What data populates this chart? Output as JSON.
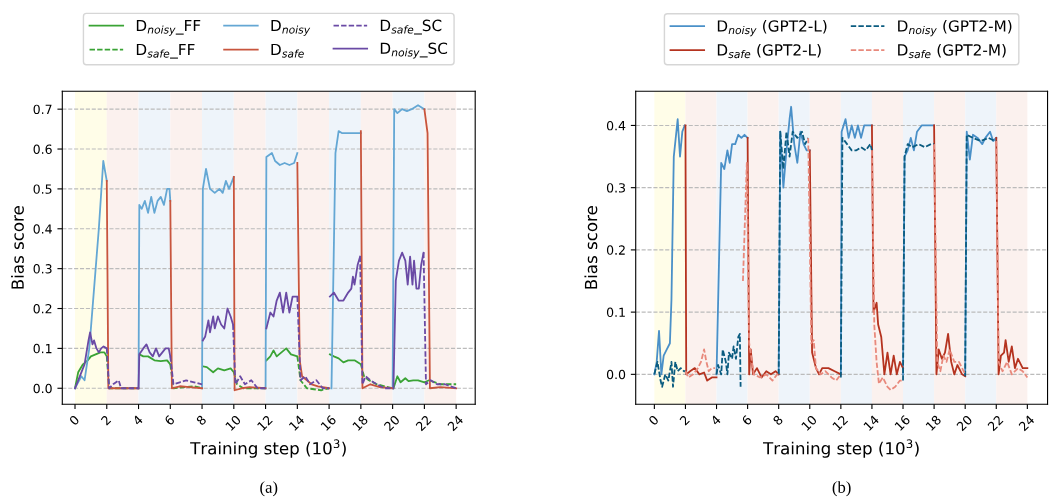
{
  "chart_data": [
    {
      "type": "line",
      "xlabel": "Training step (10$^{3}$)",
      "ylabel": "Bias score",
      "annotations": [
        "(a)"
      ],
      "xlim": [
        -0.8,
        25.2
      ],
      "xticks": [
        0,
        2,
        4,
        6,
        8,
        10,
        12,
        14,
        16,
        18,
        20,
        22,
        24
      ],
      "ylim": [
        -0.04,
        0.745
      ],
      "yticks": [
        {
          "value": 0,
          "label": "0.0"
        },
        0.1,
        0.2,
        0.3,
        0.4,
        0.5,
        0.6,
        0.7
      ],
      "grid": "y",
      "legend": "top",
      "bands": [
        {
          "axis": "x",
          "from": 0,
          "to": 2,
          "color": "#fffde8"
        },
        {
          "axis": "x",
          "from": 2,
          "to": 4,
          "color": "#fbf1ee"
        },
        {
          "axis": "x",
          "from": 4,
          "to": 6,
          "color": "#eef4fa"
        },
        {
          "axis": "x",
          "from": 6,
          "to": 8,
          "color": "#fbf1ee"
        },
        {
          "axis": "x",
          "from": 8,
          "to": 10,
          "color": "#eef4fa"
        },
        {
          "axis": "x",
          "from": 10,
          "to": 12,
          "color": "#fbf1ee"
        },
        {
          "axis": "x",
          "from": 12,
          "to": 14,
          "color": "#eef4fa"
        },
        {
          "axis": "x",
          "from": 14,
          "to": 16,
          "color": "#fbf1ee"
        },
        {
          "axis": "x",
          "from": 16,
          "to": 18,
          "color": "#eef4fa"
        },
        {
          "axis": "x",
          "from": 18,
          "to": 20,
          "color": "#fbf1ee"
        },
        {
          "axis": "x",
          "from": 20,
          "to": 22,
          "color": "#eef4fa"
        },
        {
          "axis": "x",
          "from": 22,
          "to": 24,
          "color": "#fbf1ee"
        }
      ],
      "series": [
        {
          "name": "D$_{noisy}$_FF",
          "color": "#3aa335",
          "line_style": "solid",
          "x": [
            0,
            0.2,
            0.5,
            0.8,
            1.0,
            1.3,
            1.6,
            1.85,
            2.0,
            3,
            4.05,
            4.3,
            4.6,
            5.0,
            5.4,
            5.8,
            6.0,
            7,
            8.05,
            8.3,
            8.7,
            9.0,
            9.4,
            9.8,
            10.0,
            11,
            12.05,
            12.3,
            12.5,
            12.7,
            13.0,
            13.3,
            13.6,
            14.0,
            15,
            16.05,
            16.3,
            16.6,
            16.9,
            17.2,
            17.6,
            18.0,
            19,
            20.05,
            20.3,
            20.5,
            20.8,
            21.0,
            21.3,
            21.6,
            22.0
          ],
          "values": [
            0,
            0.04,
            0.06,
            0.07,
            0.08,
            0.085,
            0.09,
            0.09,
            0.08,
            null,
            0.085,
            0.08,
            0.08,
            0.07,
            0.068,
            0.07,
            0.06,
            null,
            0.055,
            0.053,
            0.04,
            0.05,
            0.045,
            0.05,
            0.04,
            null,
            0.07,
            0.08,
            0.095,
            0.08,
            0.09,
            0.1,
            0.085,
            0.08,
            null,
            0.085,
            0.08,
            0.075,
            0.065,
            0.07,
            0.07,
            0.06,
            null,
            0.0,
            0.03,
            0.015,
            0.025,
            0.018,
            0.02,
            0.02,
            0.015
          ]
        },
        {
          "name": "D$_{safe}$_FF",
          "color": "#3aa335",
          "line_style": "dashed",
          "x": [
            2.0,
            2.15,
            3.0,
            4.0,
            5,
            6.0,
            6.2,
            7.5,
            8.0,
            9,
            10.0,
            10.2,
            10.6,
            11.5,
            12.0,
            13,
            14.0,
            14.2,
            14.6,
            15.5,
            16.0,
            17,
            18.0,
            18.2,
            18.5,
            19.0,
            19.5,
            20.0,
            21,
            22.0,
            22.3,
            23.0,
            24.0
          ],
          "values": [
            0.08,
            0.0,
            0.0,
            0.0,
            null,
            0.06,
            0.0,
            0.005,
            0.0,
            null,
            0.04,
            0.01,
            0.0,
            0.0,
            0.0,
            null,
            0.08,
            0.02,
            0.0,
            -0.005,
            0.0,
            null,
            0.06,
            0.03,
            0.02,
            0.01,
            0.005,
            0.0,
            null,
            0.015,
            0.02,
            0.01,
            0.01
          ]
        },
        {
          "name": "D$_{noisy}$",
          "color": "#64a7d4",
          "line_style": "solid",
          "x": [
            0,
            0.4,
            0.6,
            0.9,
            1.2,
            1.5,
            1.78,
            2.0,
            3,
            4.0,
            4.05,
            4.2,
            4.4,
            4.6,
            4.8,
            5.0,
            5.2,
            5.4,
            5.6,
            5.8,
            5.95,
            6.0,
            7,
            8.0,
            8.05,
            8.25,
            8.5,
            8.8,
            9.1,
            9.3,
            9.5,
            9.7,
            10.0,
            11,
            12.0,
            12.05,
            12.4,
            12.6,
            12.9,
            13.2,
            13.5,
            13.8,
            14.0,
            15,
            16.15,
            16.4,
            16.6,
            16.8,
            18.0,
            19,
            20.0,
            20.1,
            20.3,
            20.6,
            20.9,
            21.2,
            21.6,
            22.0
          ],
          "values": [
            0,
            0.03,
            0.02,
            0.1,
            0.25,
            0.4,
            0.57,
            0.52,
            null,
            0.0,
            0.46,
            0.45,
            0.47,
            0.44,
            0.48,
            0.44,
            0.47,
            0.48,
            0.46,
            0.5,
            0.5,
            0.47,
            null,
            0.0,
            0.5,
            0.55,
            0.5,
            0.49,
            0.5,
            0.49,
            0.52,
            0.5,
            0.53,
            null,
            0.0,
            0.58,
            0.59,
            0.57,
            0.56,
            0.565,
            0.56,
            0.565,
            0.59,
            null,
            0.0,
            0.59,
            0.645,
            0.64,
            0.64,
            null,
            0.0,
            0.7,
            0.69,
            0.7,
            0.695,
            0.7,
            0.71,
            0.7
          ]
        },
        {
          "name": "D$_{safe}$",
          "color": "#c8553d",
          "line_style": "solid",
          "x": [
            2.0,
            2.1,
            3.0,
            4.0,
            5,
            6.0,
            6.1,
            6.6,
            7.2,
            8.0,
            9,
            10.0,
            10.05,
            10.5,
            11.0,
            12.0,
            13,
            14.0,
            14.15,
            14.3,
            14.6,
            14.9,
            15.3,
            16.0,
            17,
            18.0,
            18.1,
            18.6,
            19.2,
            20.0,
            21,
            22.0,
            22.2,
            22.35,
            23.0,
            24.0
          ],
          "values": [
            0.52,
            0.0,
            0.0,
            0.0,
            null,
            0.47,
            0.0,
            0.005,
            0.003,
            0.0,
            null,
            0.53,
            -0.005,
            0.0,
            0.003,
            0.0,
            null,
            0.565,
            0.07,
            0.03,
            0.02,
            0.01,
            0.005,
            0.0,
            null,
            0.645,
            0.0,
            0.01,
            0.003,
            0.0,
            null,
            0.7,
            0.64,
            0.0,
            0.003,
            0.0
          ]
        },
        {
          "name": "D$_{safe}$_SC",
          "color": "#6a4aa5",
          "line_style": "dashed",
          "x": [
            2.0,
            2.15,
            2.4,
            2.75,
            2.9,
            3.5,
            4.0,
            5,
            6.0,
            6.2,
            6.6,
            7.0,
            7.5,
            8.0,
            9,
            9.95,
            10.1,
            10.4,
            10.7,
            11.1,
            11.5,
            12.0,
            13,
            14.0,
            14.2,
            14.5,
            14.8,
            15.2,
            15.6,
            16.0,
            17,
            17.95,
            18.1,
            18.3,
            18.6,
            19.0,
            19.5,
            20.0,
            21,
            21.95,
            22.1,
            22.4,
            22.8,
            23.3,
            24.0
          ],
          "values": [
            0.1,
            0.0,
            0.01,
            0.02,
            0.0,
            0.0,
            0.0,
            null,
            0.08,
            0.01,
            0.015,
            0.02,
            0.015,
            0.01,
            null,
            0.16,
            0.01,
            0.03,
            0.01,
            0.02,
            0.0,
            0.0,
            null,
            0.23,
            0.02,
            0.03,
            0.01,
            0.02,
            0.0,
            0.0,
            null,
            0.33,
            0.01,
            0.03,
            0.02,
            0.01,
            0.0,
            0.0,
            null,
            0.34,
            0.01,
            0.02,
            0.01,
            0.01,
            0.0
          ]
        },
        {
          "name": "D$_{noisy}$_SC",
          "color": "#6a4aa5",
          "line_style": "solid",
          "x": [
            0,
            0.3,
            0.6,
            0.85,
            0.95,
            1.1,
            1.2,
            1.35,
            1.5,
            1.65,
            1.8,
            2.0,
            3,
            4.0,
            4.05,
            4.3,
            4.5,
            4.7,
            4.9,
            5.1,
            5.3,
            5.5,
            5.7,
            5.9,
            6.0,
            7,
            8.05,
            8.2,
            8.4,
            8.5,
            8.7,
            8.8,
            9.0,
            9.2,
            9.4,
            9.6,
            9.8,
            9.95,
            11,
            12.05,
            12.3,
            12.5,
            12.7,
            12.9,
            13.1,
            13.3,
            13.5,
            13.7,
            13.9,
            14.0,
            15,
            16.05,
            16.3,
            16.6,
            16.9,
            17.2,
            17.4,
            17.5,
            17.6,
            17.8,
            17.95,
            19,
            20.05,
            20.2,
            20.4,
            20.6,
            20.8,
            20.95,
            21.1,
            21.25,
            21.35,
            21.5,
            21.65,
            21.8,
            21.95
          ],
          "values": [
            0,
            0.03,
            0.06,
            0.12,
            0.14,
            0.11,
            0.12,
            0.1,
            0.09,
            0.1,
            0.105,
            0.1,
            null,
            0.0,
            0.085,
            0.1,
            0.11,
            0.09,
            0.08,
            0.1,
            0.08,
            0.09,
            0.1,
            0.1,
            0.08,
            null,
            0.12,
            0.13,
            0.17,
            0.14,
            0.18,
            0.15,
            0.18,
            0.16,
            0.15,
            0.2,
            0.18,
            0.16,
            null,
            0.15,
            0.19,
            0.18,
            0.22,
            0.24,
            0.19,
            0.24,
            0.19,
            0.23,
            0.23,
            0.23,
            null,
            0.23,
            0.24,
            0.22,
            0.22,
            0.24,
            0.25,
            0.28,
            0.26,
            0.31,
            0.33,
            null,
            0.0,
            0.27,
            0.32,
            0.34,
            0.32,
            0.26,
            0.33,
            0.26,
            0.32,
            0.25,
            0.25,
            0.31,
            0.34
          ]
        }
      ]
    },
    {
      "type": "line",
      "xlabel": "Training step (10$^{3}$)",
      "ylabel": "Bias score",
      "annotations": [
        "(b)"
      ],
      "xlim": [
        -1.2,
        25.3
      ],
      "xticks": [
        0,
        2,
        4,
        6,
        8,
        10,
        12,
        14,
        16,
        18,
        20,
        22,
        24
      ],
      "ylim": [
        -0.048,
        0.455
      ],
      "yticks": [
        {
          "value": 0,
          "label": "0.0"
        },
        0.1,
        0.2,
        0.3,
        0.4
      ],
      "grid": "y",
      "legend": "top",
      "bands": [
        {
          "axis": "x",
          "from": 0,
          "to": 2,
          "color": "#fffde8"
        },
        {
          "axis": "x",
          "from": 2,
          "to": 4,
          "color": "#fbf1ee"
        },
        {
          "axis": "x",
          "from": 4,
          "to": 6,
          "color": "#eef4fa"
        },
        {
          "axis": "x",
          "from": 6,
          "to": 8,
          "color": "#fbf1ee"
        },
        {
          "axis": "x",
          "from": 8,
          "to": 10,
          "color": "#eef4fa"
        },
        {
          "axis": "x",
          "from": 10,
          "to": 12,
          "color": "#fbf1ee"
        },
        {
          "axis": "x",
          "from": 12,
          "to": 14,
          "color": "#eef4fa"
        },
        {
          "axis": "x",
          "from": 14,
          "to": 16,
          "color": "#fbf1ee"
        },
        {
          "axis": "x",
          "from": 16,
          "to": 18,
          "color": "#eef4fa"
        },
        {
          "axis": "x",
          "from": 18,
          "to": 20,
          "color": "#fbf1ee"
        },
        {
          "axis": "x",
          "from": 20,
          "to": 22,
          "color": "#eef4fa"
        },
        {
          "axis": "x",
          "from": 22,
          "to": 24,
          "color": "#fbf1ee"
        }
      ],
      "series": [
        {
          "name": "D$_{noisy}$ (GPT2-L)",
          "color": "#4a90c8",
          "line_style": "solid",
          "x": [
            0,
            0.15,
            0.3,
            0.45,
            0.6,
            0.8,
            1.0,
            1.1,
            1.25,
            1.5,
            1.65,
            1.8,
            1.95,
            3,
            4.0,
            4.3,
            4.5,
            4.7,
            4.85,
            5.0,
            5.2,
            5.4,
            5.6,
            5.8,
            6.0,
            7,
            8.0,
            8.1,
            8.3,
            8.5,
            8.7,
            8.8,
            9.0,
            9.2,
            9.4,
            9.6,
            9.8,
            10.0,
            11,
            12.0,
            12.05,
            12.3,
            12.5,
            12.7,
            12.9,
            13.1,
            13.3,
            13.5,
            14.0,
            15,
            16.0,
            16.1,
            16.3,
            16.5,
            16.7,
            16.9,
            17.2,
            17.6,
            18.0,
            19,
            20.0,
            20.1,
            20.3,
            20.5,
            20.8,
            21.1,
            21.3,
            21.6,
            21.8,
            22.0
          ],
          "values": [
            0.0,
            0.02,
            0.07,
            0.0,
            0.03,
            0.04,
            0.05,
            0.12,
            0.35,
            0.41,
            0.35,
            0.39,
            0.4,
            null,
            0.0,
            0.34,
            0.33,
            0.36,
            0.34,
            0.37,
            0.37,
            0.385,
            0.38,
            0.385,
            0.38,
            null,
            0.0,
            0.39,
            0.3,
            0.36,
            0.41,
            0.43,
            0.37,
            0.34,
            0.39,
            0.37,
            0.36,
            0.36,
            null,
            0.0,
            0.39,
            0.41,
            0.38,
            0.4,
            0.38,
            0.4,
            0.38,
            0.4,
            0.4,
            null,
            0.0,
            0.35,
            0.36,
            0.38,
            0.36,
            0.39,
            0.4,
            0.4,
            0.4,
            null,
            0.0,
            0.39,
            0.345,
            0.385,
            0.38,
            0.37,
            0.38,
            0.39,
            0.375,
            0.38
          ]
        },
        {
          "name": "D$_{safe}$ (GPT2-L)",
          "color": "#b5331f",
          "line_style": "solid",
          "x": [
            2.0,
            2.05,
            2.3,
            2.6,
            2.9,
            3.2,
            3.4,
            3.7,
            4.0,
            5,
            6.0,
            6.1,
            6.2,
            6.35,
            6.6,
            6.9,
            7.2,
            7.5,
            7.8,
            8.0,
            9,
            10.0,
            10.15,
            10.4,
            10.6,
            10.8,
            11.2,
            11.6,
            12.0,
            13,
            14.0,
            14.1,
            14.3,
            14.4,
            14.6,
            14.8,
            15.0,
            15.2,
            15.4,
            15.6,
            15.8,
            16.0,
            17,
            18.0,
            18.15,
            18.3,
            18.5,
            18.7,
            18.9,
            19.1,
            19.3,
            19.5,
            19.8,
            20.0,
            21,
            22.0,
            22.15,
            22.3,
            22.5,
            22.6,
            22.8,
            23.0,
            23.2,
            23.4,
            23.7,
            24.0
          ],
          "values": [
            0.4,
            0.0,
            0.005,
            0.01,
            0.0,
            0.003,
            -0.01,
            -0.005,
            -0.005,
            null,
            0.38,
            0.0,
            0.04,
            0.0,
            0.01,
            -0.005,
            0.005,
            0.0,
            0.005,
            0.0,
            null,
            0.36,
            0.035,
            0.01,
            0.0,
            0.01,
            0.01,
            0.005,
            0.0,
            null,
            0.4,
            0.1,
            0.115,
            0.08,
            0.06,
            0.0,
            0.035,
            0.0,
            0.03,
            0.0,
            0.02,
            0.01,
            null,
            0.4,
            0.0,
            0.04,
            0.025,
            0.035,
            0.065,
            0.02,
            0.0,
            0.015,
            0.0,
            -0.003,
            null,
            0.38,
            0.0,
            0.03,
            0.035,
            0.055,
            0.02,
            0.045,
            0.01,
            0.025,
            0.01,
            0.01
          ]
        },
        {
          "name": "D$_{noisy}$ (GPT2-M)",
          "color": "#0b5c80",
          "line_style": "dashed",
          "x": [
            0,
            0.2,
            0.4,
            0.5,
            0.7,
            0.9,
            1.1,
            1.2,
            1.35,
            1.5,
            1.7,
            1.9,
            2.0,
            3,
            4.0,
            4.1,
            4.3,
            4.4,
            4.6,
            4.7,
            4.8,
            5.0,
            5.1,
            5.25,
            5.4,
            5.5,
            5.55,
            7,
            8.0,
            8.1,
            8.3,
            8.5,
            8.7,
            8.9,
            9.2,
            9.5,
            9.7,
            9.9,
            11,
            12.0,
            12.1,
            12.4,
            12.7,
            13.0,
            13.3,
            13.6,
            13.9,
            14.0,
            15,
            16.0,
            16.1,
            16.3,
            16.6,
            17.0,
            17.4,
            17.8,
            18.0,
            19,
            20.0,
            20.1,
            20.5,
            21.0,
            21.5,
            21.9,
            22.0
          ],
          "values": [
            0.0,
            0.02,
            -0.01,
            -0.02,
            0.0,
            -0.01,
            0.02,
            -0.02,
            0.02,
            0.005,
            0.01,
            0.005,
            0.005,
            null,
            0.0,
            0.015,
            0.0,
            0.04,
            0.02,
            0.0,
            0.035,
            0.025,
            0.045,
            0.025,
            0.06,
            0.065,
            -0.02,
            null,
            0.0,
            0.39,
            0.33,
            0.39,
            0.35,
            0.39,
            0.38,
            0.39,
            0.37,
            0.38,
            null,
            -0.005,
            0.38,
            0.37,
            0.36,
            0.36,
            0.365,
            0.36,
            0.37,
            0.36,
            null,
            -0.01,
            0.35,
            0.37,
            0.365,
            0.37,
            0.365,
            0.37,
            0.37,
            null,
            -0.003,
            0.385,
            0.38,
            0.375,
            0.38,
            0.375,
            0.375
          ]
        },
        {
          "name": "D$_{safe}$ (GPT2-M)",
          "color": "#e8897c",
          "line_style": "dashed",
          "x": [
            2.0,
            2.2,
            2.5,
            2.8,
            3.0,
            3.2,
            3.35,
            3.5,
            3.7,
            3.9,
            4.8,
            5.7,
            5.95,
            6.1,
            6.4,
            6.8,
            7.2,
            7.6,
            7.9,
            8.0,
            9,
            9.9,
            10.1,
            10.25,
            10.4,
            10.7,
            11.0,
            11.4,
            11.7,
            12.0,
            13,
            14.0,
            14.15,
            14.3,
            14.45,
            14.7,
            15.0,
            15.2,
            15.5,
            15.8,
            16.0,
            17,
            18.0,
            18.2,
            18.4,
            18.6,
            18.8,
            19.0,
            19.3,
            19.6,
            20.0,
            21,
            22.0,
            22.15,
            22.4,
            22.7,
            23.0,
            23.4,
            23.7,
            24.0
          ],
          "values": [
            0.005,
            -0.005,
            0.0,
            0.01,
            0.02,
            0.04,
            0.02,
            0.005,
            0.01,
            0.01,
            null,
            0.15,
            0.34,
            0.05,
            0.0,
            -0.005,
            0.0,
            -0.01,
            0.0,
            0.0,
            null,
            0.38,
            0.05,
            0.055,
            0.01,
            0.0,
            0.005,
            -0.005,
            -0.01,
            0.0,
            null,
            0.36,
            0.08,
            0.02,
            -0.015,
            -0.005,
            -0.02,
            -0.025,
            -0.02,
            -0.01,
            -0.01,
            null,
            0.37,
            0.02,
            0.005,
            0.03,
            0.02,
            0.04,
            0.02,
            0.02,
            0.0,
            null,
            0.375,
            0.02,
            0.005,
            0.02,
            0.0,
            0.01,
            0.005,
            -0.005
          ]
        }
      ]
    }
  ]
}
